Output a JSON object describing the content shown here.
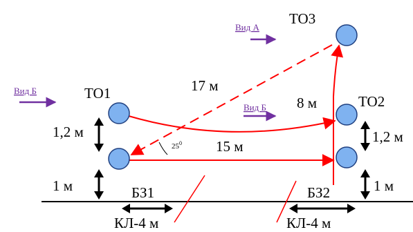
{
  "nodes": {
    "to1": "ТО1",
    "to2": "ТО2",
    "to3": "ТО3",
    "bz1": "БЗ1",
    "bz2": "БЗ2"
  },
  "views": {
    "a": "Вид А",
    "b_left": "Вид Б",
    "b_mid": "Вид Б"
  },
  "distances": {
    "diag": "17 м",
    "vertical": "8 м",
    "horizontal": "15 м",
    "left_upper": "1,2 м",
    "left_lower": "1 м",
    "right_upper": "1,2 м",
    "right_lower": "1 м"
  },
  "angle": {
    "value": "25",
    "unit": "0"
  },
  "cables": {
    "left": "КЛ-4 м",
    "right": "КЛ-4 м"
  },
  "colors": {
    "node_fill": "#7fb2f0",
    "route": "#ff0000",
    "view_arrow": "#7030a0"
  }
}
